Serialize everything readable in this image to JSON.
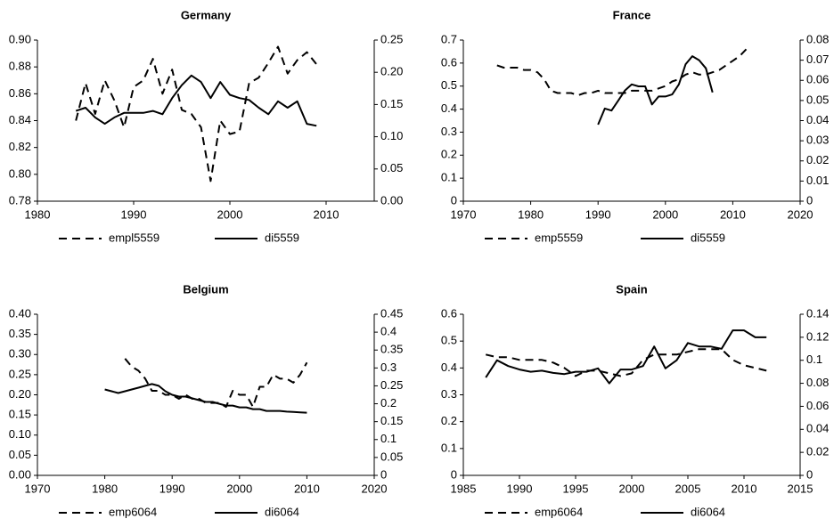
{
  "chart_data": [
    {
      "type": "line",
      "title": "Germany",
      "legend": "bottom",
      "x": [
        1984,
        1985,
        1986,
        1987,
        1988,
        1989,
        1990,
        1991,
        1992,
        1993,
        1994,
        1995,
        1996,
        1997,
        1998,
        1999,
        2000,
        2001,
        2002,
        2003,
        2004,
        2005,
        2006,
        2007,
        2008,
        2009
      ],
      "xlim": [
        1980,
        2015
      ],
      "xticks": [
        1980,
        1990,
        2000,
        2010
      ],
      "ylim": [
        0.78,
        0.9
      ],
      "yticks": [
        0.78,
        {
          "value": 0.8,
          "label": "0.80"
        },
        0.82,
        0.84,
        0.86,
        0.88,
        {
          "value": 0.9,
          "label": "0.90"
        }
      ],
      "y2lim": [
        0,
        0.25
      ],
      "y2ticks": [
        {
          "value": 0,
          "label": "0.00"
        },
        0.05,
        {
          "value": 0.1,
          "label": "0.10"
        },
        0.15,
        {
          "value": 0.2,
          "label": "0.20"
        },
        0.25
      ],
      "series": [
        {
          "name": "empl5559",
          "color": "#000000",
          "style": "dashed",
          "values": [
            0.84,
            0.868,
            0.845,
            0.87,
            0.855,
            0.835,
            0.865,
            0.87,
            0.886,
            0.86,
            0.878,
            0.848,
            0.845,
            0.835,
            0.795,
            0.84,
            0.83,
            0.832,
            0.868,
            0.872,
            0.883,
            0.895,
            0.875,
            0.885,
            0.891,
            0.882
          ]
        },
        {
          "name": "di5559",
          "color": "#000000",
          "style": "solid",
          "axis": "y2",
          "values": [
            0.14,
            0.145,
            0.13,
            0.12,
            0.13,
            0.137,
            0.137,
            0.137,
            0.14,
            0.135,
            0.16,
            0.18,
            0.195,
            0.185,
            0.16,
            0.185,
            0.165,
            0.16,
            0.157,
            0.145,
            0.135,
            0.155,
            0.145,
            0.155,
            0.12,
            0.117
          ]
        }
      ]
    },
    {
      "type": "line",
      "title": "France",
      "legend": "bottom",
      "x": [
        1975,
        1976,
        1977,
        1978,
        1979,
        1980,
        1981,
        1982,
        1983,
        1984,
        1985,
        1986,
        1987,
        1988,
        1989,
        1990,
        1991,
        1992,
        1993,
        1994,
        1995,
        1996,
        1997,
        1998,
        1999,
        2000,
        2001,
        2002,
        2003,
        2004,
        2005,
        2006,
        2007,
        2008,
        2009,
        2010,
        2011,
        2012
      ],
      "xlim": [
        1970,
        2020
      ],
      "xticks": [
        1970,
        1980,
        1990,
        2000,
        2010,
        2020
      ],
      "ylim": [
        0,
        0.7
      ],
      "yticks": [
        0,
        0.1,
        0.2,
        0.3,
        0.4,
        0.5,
        0.6,
        0.7
      ],
      "y2lim": [
        0,
        0.08
      ],
      "y2ticks": [
        0,
        0.01,
        0.02,
        0.03,
        0.04,
        0.05,
        0.06,
        0.07,
        0.08
      ],
      "series": [
        {
          "name": "emp5559",
          "color": "#000000",
          "style": "dashed",
          "values": [
            0.59,
            0.58,
            0.58,
            0.58,
            0.57,
            0.57,
            0.56,
            0.53,
            0.48,
            0.47,
            0.47,
            0.47,
            0.46,
            0.47,
            0.47,
            0.48,
            0.47,
            0.47,
            0.47,
            0.47,
            0.48,
            0.48,
            0.48,
            0.48,
            0.49,
            0.5,
            0.52,
            0.53,
            0.55,
            0.56,
            0.55,
            0.55,
            0.56,
            0.57,
            0.59,
            0.61,
            0.63,
            0.66
          ]
        },
        {
          "name": "di5559",
          "color": "#000000",
          "style": "solid",
          "axis": "y2",
          "values": [
            null,
            null,
            null,
            null,
            null,
            null,
            null,
            null,
            null,
            null,
            null,
            null,
            null,
            null,
            null,
            0.038,
            0.046,
            0.045,
            0.05,
            0.055,
            0.058,
            0.057,
            0.057,
            0.048,
            0.052,
            0.052,
            0.053,
            0.058,
            0.068,
            0.072,
            0.07,
            0.066,
            0.054,
            null,
            null,
            null,
            null,
            null
          ]
        }
      ]
    },
    {
      "type": "line",
      "title": "Belgium",
      "legend": "bottom",
      "x": [
        1980,
        1981,
        1982,
        1983,
        1984,
        1985,
        1986,
        1987,
        1988,
        1989,
        1990,
        1991,
        1992,
        1993,
        1994,
        1995,
        1996,
        1997,
        1998,
        1999,
        2000,
        2001,
        2002,
        2003,
        2004,
        2005,
        2006,
        2007,
        2008,
        2009,
        2010
      ],
      "xlim": [
        1970,
        2020
      ],
      "xticks": [
        1970,
        1980,
        1990,
        2000,
        2010,
        2020
      ],
      "ylim": [
        0,
        0.4
      ],
      "yticks": [
        {
          "value": 0,
          "label": "0.00"
        },
        0.05,
        {
          "value": 0.1,
          "label": "0.10"
        },
        0.15,
        {
          "value": 0.2,
          "label": "0.20"
        },
        0.25,
        {
          "value": 0.3,
          "label": "0.30"
        },
        0.35,
        {
          "value": 0.4,
          "label": "0.40"
        }
      ],
      "y2lim": [
        0,
        0.45
      ],
      "y2ticks": [
        0,
        0.05,
        0.1,
        0.15,
        0.2,
        0.25,
        0.3,
        0.35,
        0.4,
        0.45
      ],
      "series": [
        {
          "name": "emp6064",
          "color": "#000000",
          "style": "dashed",
          "values": [
            null,
            null,
            null,
            0.29,
            0.27,
            0.26,
            0.24,
            0.21,
            0.21,
            0.2,
            0.2,
            0.19,
            0.2,
            0.19,
            0.19,
            0.18,
            0.18,
            0.18,
            0.17,
            0.21,
            0.2,
            0.2,
            0.17,
            0.22,
            0.22,
            0.25,
            0.24,
            0.24,
            0.23,
            0.25,
            0.28
          ]
        },
        {
          "name": "di6064",
          "color": "#000000",
          "style": "solid",
          "axis": "y2",
          "values": [
            0.24,
            0.235,
            0.23,
            0.235,
            0.24,
            0.245,
            0.25,
            0.255,
            0.25,
            0.235,
            0.225,
            0.22,
            0.22,
            0.215,
            0.21,
            0.205,
            0.205,
            0.2,
            0.195,
            0.195,
            0.19,
            0.19,
            0.185,
            0.185,
            0.18,
            0.18,
            0.18,
            0.178,
            0.177,
            0.176,
            0.175
          ]
        }
      ]
    },
    {
      "type": "line",
      "title": "Spain",
      "legend": "bottom",
      "x": [
        1987,
        1988,
        1989,
        1990,
        1991,
        1992,
        1993,
        1994,
        1995,
        1996,
        1997,
        1998,
        1999,
        2000,
        2001,
        2002,
        2003,
        2004,
        2005,
        2006,
        2007,
        2008,
        2009,
        2010,
        2011,
        2012
      ],
      "xlim": [
        1985,
        2015
      ],
      "xticks": [
        1985,
        1990,
        1995,
        2000,
        2005,
        2010,
        2015
      ],
      "ylim": [
        0,
        0.6
      ],
      "yticks": [
        0,
        0.1,
        0.2,
        0.3,
        0.4,
        0.5,
        0.6
      ],
      "y2lim": [
        0,
        0.14
      ],
      "y2ticks": [
        0,
        0.02,
        0.04,
        0.06,
        0.08,
        0.1,
        0.12,
        0.14
      ],
      "series": [
        {
          "name": "emp6064",
          "color": "#000000",
          "style": "dashed",
          "values": [
            0.45,
            0.44,
            0.44,
            0.43,
            0.43,
            0.43,
            0.42,
            0.4,
            0.37,
            0.39,
            0.39,
            0.38,
            0.37,
            0.38,
            0.43,
            0.45,
            0.45,
            0.45,
            0.46,
            0.47,
            0.47,
            0.47,
            0.43,
            0.41,
            0.4,
            0.39
          ]
        },
        {
          "name": "di6064",
          "color": "#000000",
          "style": "solid",
          "axis": "y2",
          "values": [
            0.085,
            0.1,
            0.095,
            0.092,
            0.09,
            0.091,
            0.089,
            0.088,
            0.09,
            0.09,
            0.093,
            0.08,
            0.092,
            0.092,
            0.095,
            0.112,
            0.093,
            0.1,
            0.115,
            0.112,
            0.112,
            0.11,
            0.126,
            0.126,
            0.12,
            0.12
          ]
        }
      ]
    }
  ]
}
